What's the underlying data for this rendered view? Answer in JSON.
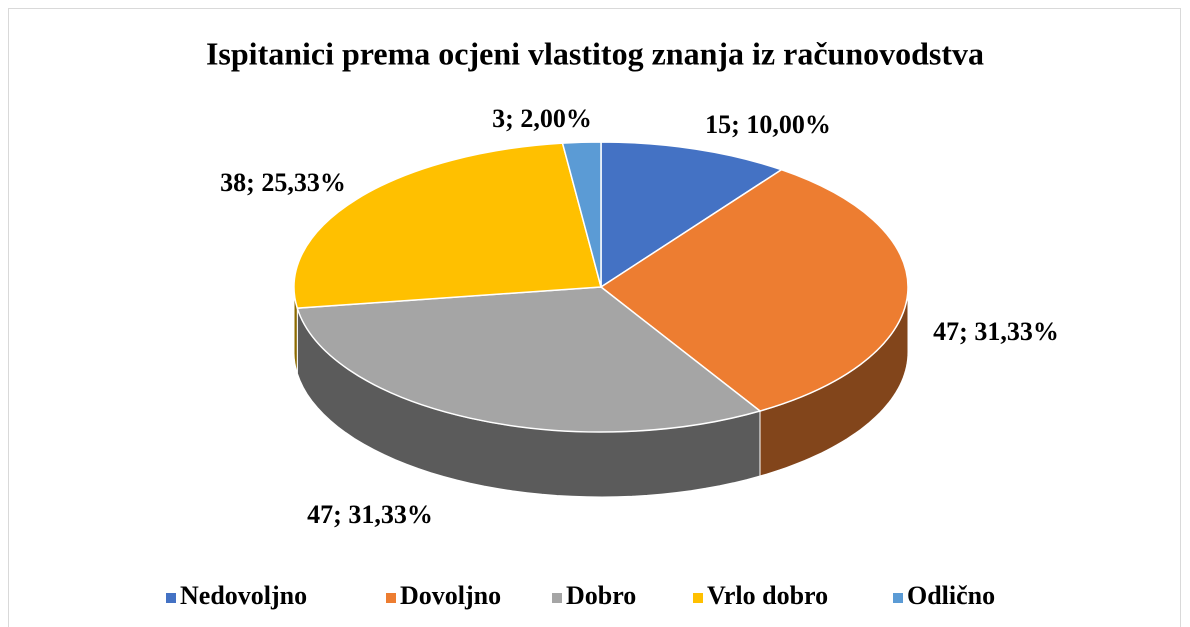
{
  "chart_data": {
    "type": "pie",
    "title": "Ispitanici prema ocjeni vlastitog znanja iz računovodstva",
    "categories": [
      "Nedovoljno",
      "Dovoljno",
      "Dobro",
      "Vrlo dobro",
      "Odlično"
    ],
    "values": [
      15,
      47,
      47,
      38,
      3
    ],
    "value_labels": [
      "15; 10,00%",
      "47; 31,33%",
      "47; 31,33%",
      "38; 25,33%",
      "3; 2,00%"
    ],
    "colors": [
      "#4472c4",
      "#ed7d31",
      "#a5a5a5",
      "#ffc000",
      "#5b9bd5"
    ],
    "legend": "bottom"
  }
}
